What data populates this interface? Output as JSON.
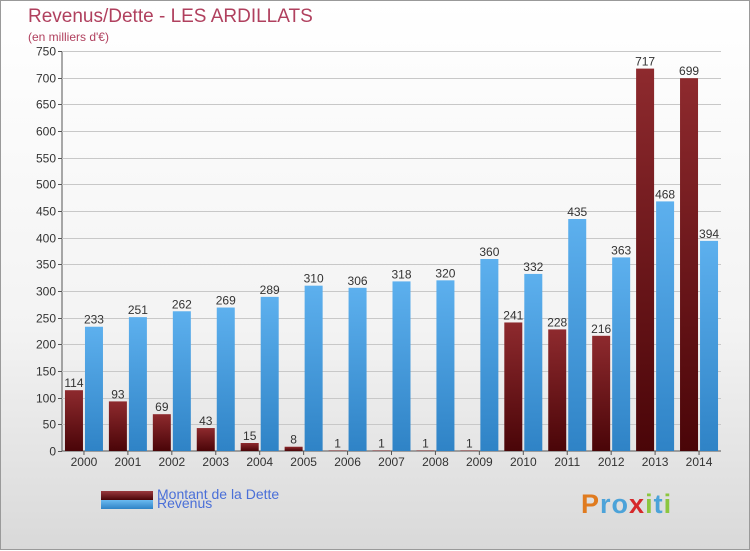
{
  "title": "Revenus/Dette - LES ARDILLATS",
  "subtitle": "(en milliers d'€)",
  "logo": {
    "letters": [
      "P",
      "r",
      "o",
      "x",
      "i",
      "t",
      "i"
    ],
    "colors": [
      "#e07b1f",
      "#4ca3d9",
      "#4ca3d9",
      "#d6282a",
      "#8cc63f",
      "#4ca3d9",
      "#8cc63f"
    ]
  },
  "legend": [
    {
      "label": "Montant de la Dette",
      "color": "#6b0f12"
    },
    {
      "label": "Revenus",
      "color": "#3b93d4"
    }
  ],
  "chart_data": {
    "type": "bar",
    "title": "Revenus/Dette - LES ARDILLATS",
    "ylabel": "(en milliers d'€)",
    "ylim": [
      0,
      750
    ],
    "yticks": [
      0,
      50,
      100,
      150,
      200,
      250,
      300,
      350,
      400,
      450,
      500,
      550,
      600,
      650,
      700,
      750
    ],
    "grid": true,
    "legend_position": "bottom-left",
    "categories": [
      "2000",
      "2001",
      "2002",
      "2003",
      "2004",
      "2005",
      "2006",
      "2007",
      "2008",
      "2009",
      "2010",
      "2011",
      "2012",
      "2013",
      "2014"
    ],
    "series": [
      {
        "name": "Montant de la Dette",
        "color": "#6b0f12",
        "values": [
          114,
          93,
          69,
          43,
          15,
          8,
          1,
          1,
          1,
          1,
          241,
          228,
          216,
          717,
          699
        ]
      },
      {
        "name": "Revenus",
        "color": "#3b93d4",
        "values": [
          233,
          251,
          262,
          269,
          289,
          310,
          306,
          318,
          320,
          360,
          332,
          435,
          363,
          468,
          394
        ]
      }
    ]
  }
}
